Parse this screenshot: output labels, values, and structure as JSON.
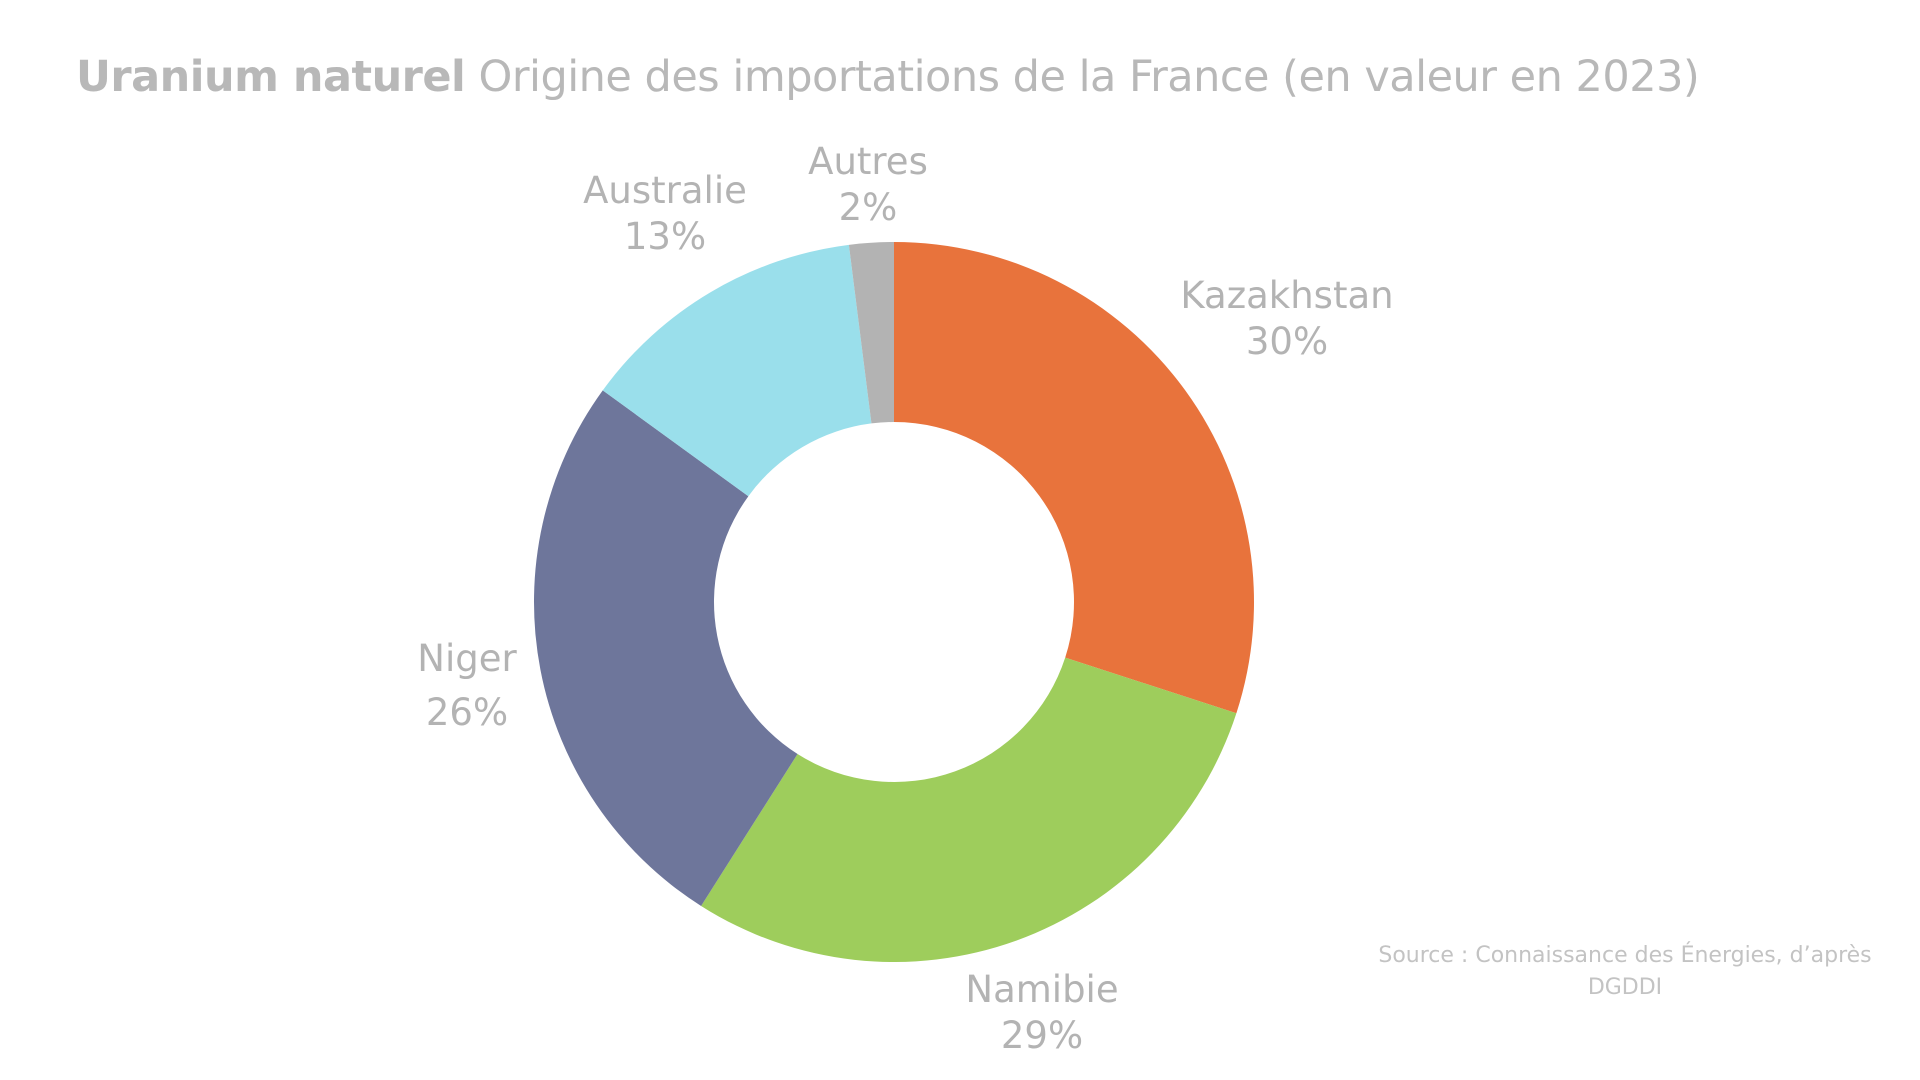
{
  "title": {
    "bold": "Uranium naturel",
    "regular": "Origine des importations de la France (en valeur en 2023)"
  },
  "source": {
    "line1": "Source : Connaissance des Énergies, d’après",
    "line2": "DGDDI"
  },
  "labels": {
    "kazakhstan": {
      "name": "Kazakhstan",
      "pct": "30%"
    },
    "namibie": {
      "name": "Namibie",
      "pct": "29%"
    },
    "niger": {
      "name": "Niger",
      "pct": "26%"
    },
    "australie": {
      "name": "Australie",
      "pct": "13%"
    },
    "autres": {
      "name": "Autres",
      "pct": "2%"
    }
  },
  "chart_data": {
    "type": "pie",
    "subtype": "donut",
    "title": "Uranium naturel Origine des importations de la France (en valeur en 2023)",
    "categories": [
      "Kazakhstan",
      "Namibie",
      "Niger",
      "Australie",
      "Autres"
    ],
    "values": [
      30,
      29,
      26,
      13,
      2
    ],
    "unit": "%",
    "colors": [
      "#e8733c",
      "#9ecd5c",
      "#6e769b",
      "#9adfeb",
      "#b3b3b3"
    ],
    "start_angle": "12 o'clock",
    "direction": "clockwise",
    "legend": "none (data labels outside slices)",
    "annotation": "Source : Connaissance des Énergies, d’après DGDDI"
  }
}
